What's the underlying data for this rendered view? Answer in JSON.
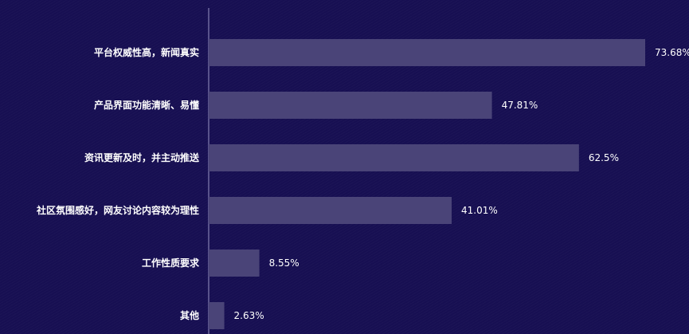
{
  "chart_data": {
    "type": "bar",
    "orientation": "horizontal",
    "categories": [
      "平台权威性高，新闻真实",
      "产品界面功能清晰、易懂",
      "资讯更新及时，并主动推送",
      "社区氛围感好，网友讨论内容较为理性",
      "工作性质要求",
      "其他"
    ],
    "values": [
      73.68,
      47.81,
      62.5,
      41.01,
      8.55,
      2.63
    ],
    "value_labels": [
      "73.68%",
      "47.81%",
      "62.5%",
      "41.01%",
      "8.55%",
      "2.63%"
    ],
    "title": "",
    "xlabel": "",
    "ylabel": "",
    "xlim": [
      0,
      76
    ],
    "grid": false,
    "legend": "none",
    "colors": {
      "background": "#170f52",
      "bar": "#4a4478",
      "axis": "#9a96c4",
      "text": "#ffffff"
    }
  }
}
